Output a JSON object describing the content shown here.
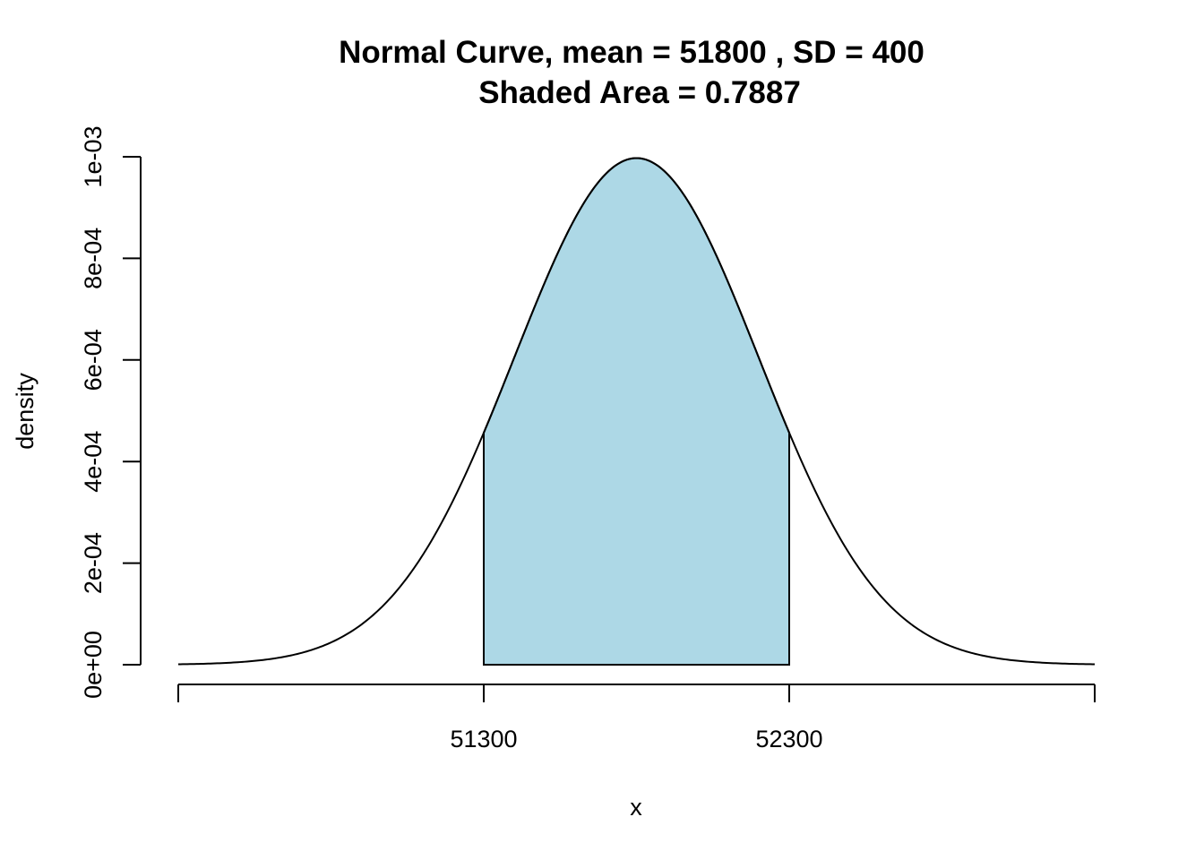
{
  "chart_data": {
    "type": "area",
    "title": "Normal Curve, mean =  51800 , SD =  400",
    "subtitle": "Shaded Area =  0.7887",
    "xlabel": "x",
    "ylabel": "density",
    "mean": 51800,
    "sd": 400,
    "shade_range": [
      51300,
      52300
    ],
    "shaded_area": 0.7887,
    "xlim": [
      51300,
      53300
    ],
    "x_domain": [
      50300,
      53300
    ],
    "ylim": [
      0,
      0.001
    ],
    "x_ticks": [
      50300,
      51300,
      52300,
      53300
    ],
    "x_tick_labels": [
      "",
      "51300",
      "52300",
      ""
    ],
    "y_ticks": [
      0,
      0.0002,
      0.0004,
      0.0006,
      0.0008,
      0.001
    ],
    "y_tick_labels": [
      "0e+00",
      "2e-04",
      "4e-04",
      "6e-04",
      "8e-04",
      "1e-03"
    ],
    "grid": false,
    "colors": {
      "shade": "#ADD8E6",
      "line": "#000000"
    }
  }
}
